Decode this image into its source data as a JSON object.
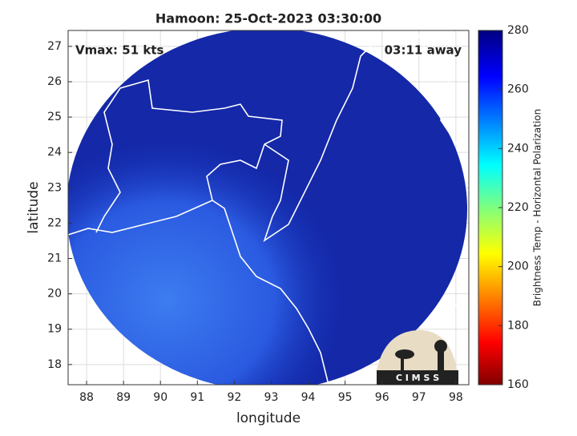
{
  "map": {
    "title": "Hamoon: 25-Oct-2023 03:30:00",
    "xlabel": "longitude",
    "ylabel": "latitude",
    "xlim": [
      87.5,
      98.35
    ],
    "ylim": [
      17.43,
      27.45
    ],
    "xticks": [
      88,
      89,
      90,
      91,
      92,
      93,
      94,
      95,
      96,
      97,
      98
    ],
    "yticks": [
      18,
      19,
      20,
      21,
      22,
      23,
      24,
      25,
      26,
      27
    ],
    "grid": true,
    "annotations": [
      "Vmax: 51 kts",
      "03:11 away"
    ],
    "colorbar": {
      "label": "Brightness Temp - Horizontal Polarization",
      "lim": [
        160,
        280
      ],
      "ticks": [
        160,
        180,
        200,
        220,
        240,
        260,
        280
      ]
    },
    "logo": "C I M S S"
  }
}
